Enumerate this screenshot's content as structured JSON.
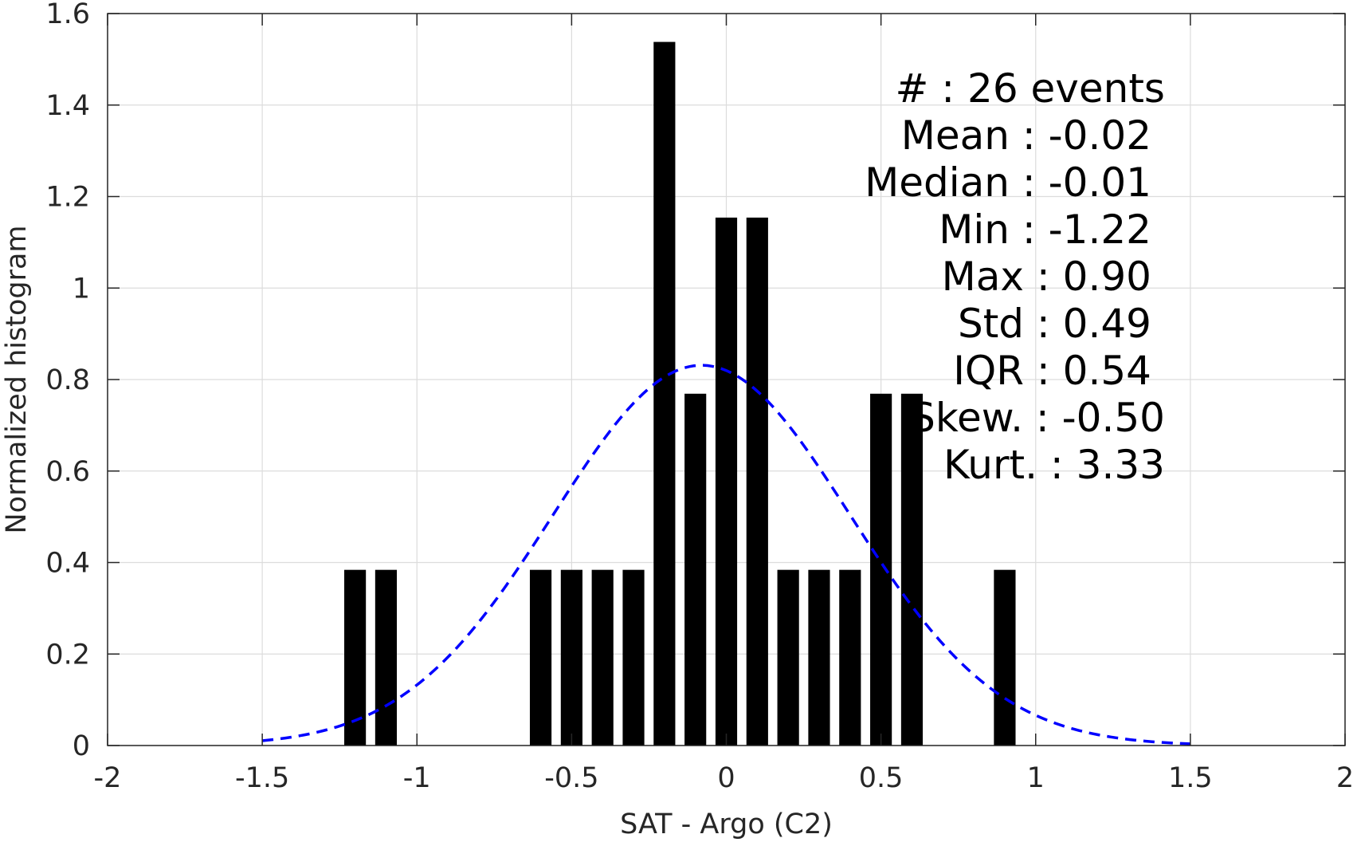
{
  "chart_data": {
    "type": "bar",
    "xlabel": "SAT - Argo (C2)",
    "ylabel": "Normalized histogram",
    "xlim": [
      -2,
      2
    ],
    "ylim": [
      0,
      1.6
    ],
    "x_ticks": [
      "-2",
      "-1.5",
      "-1",
      "-0.5",
      "0",
      "0.5",
      "1",
      "1.5",
      "2"
    ],
    "y_ticks": [
      "0",
      "0.2",
      "0.4",
      "0.6",
      "0.8",
      "1",
      "1.2",
      "1.4",
      "1.6"
    ],
    "grid": true,
    "bar_color": "#000000",
    "bars": [
      {
        "x": -1.2,
        "value": 0.384
      },
      {
        "x": -1.1,
        "value": 0.384
      },
      {
        "x": -0.6,
        "value": 0.384
      },
      {
        "x": -0.5,
        "value": 0.384
      },
      {
        "x": -0.4,
        "value": 0.384
      },
      {
        "x": -0.3,
        "value": 0.384
      },
      {
        "x": -0.2,
        "value": 1.538
      },
      {
        "x": -0.1,
        "value": 0.769
      },
      {
        "x": 0.0,
        "value": 1.154
      },
      {
        "x": 0.1,
        "value": 1.154
      },
      {
        "x": 0.2,
        "value": 0.384
      },
      {
        "x": 0.3,
        "value": 0.384
      },
      {
        "x": 0.4,
        "value": 0.384
      },
      {
        "x": 0.5,
        "value": 0.769
      },
      {
        "x": 0.6,
        "value": 0.769
      },
      {
        "x": 0.9,
        "value": 0.384
      }
    ],
    "bar_width": 0.07,
    "fit_curve": {
      "type": "normal",
      "mean": -0.08,
      "std": 0.48,
      "x_range": [
        -1.5,
        1.5
      ],
      "color": "#0000ff",
      "style": "dashed"
    },
    "stats": [
      {
        "label": "#  : 26 events"
      },
      {
        "label": "Mean : -0.02"
      },
      {
        "label": "Median : -0.01"
      },
      {
        "label": "Min : -1.22"
      },
      {
        "label": "Max : 0.90"
      },
      {
        "label": "Std : 0.49"
      },
      {
        "label": "IQR : 0.54"
      },
      {
        "label": "Skew. : -0.50"
      },
      {
        "label": "Kurt. : 3.33"
      }
    ]
  }
}
